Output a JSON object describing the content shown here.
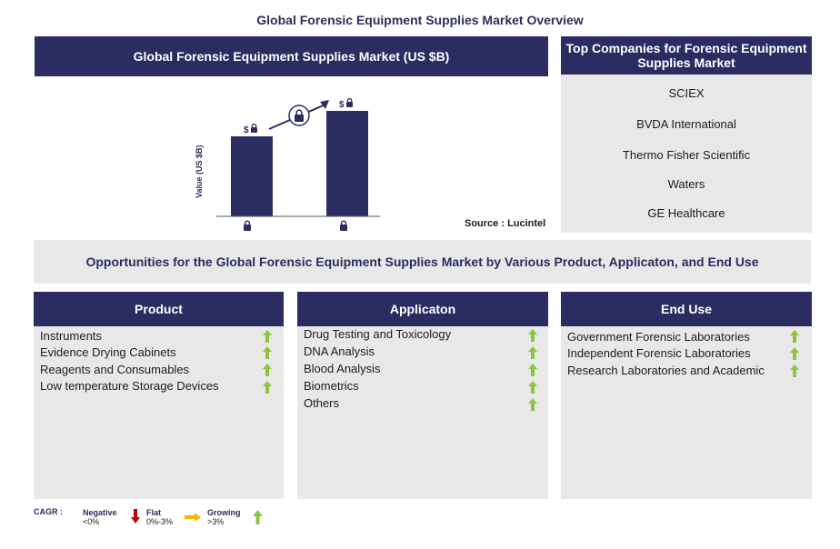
{
  "page_title": "Global Forensic Equipment Supplies Market Overview",
  "chart_panel": {
    "title": "Global Forensic Equipment Supplies Market (US $B)",
    "ylabel": "Value (US $B)",
    "source": "Source : Lucintel",
    "bar_label_symbol": "$"
  },
  "chart_data": {
    "type": "bar",
    "categories": [
      "",
      ""
    ],
    "values": [
      88,
      116
    ],
    "ylabel": "Value (US $B)",
    "note": ""
  },
  "companies": {
    "title": "Top Companies for Forensic Equipment Supplies Market",
    "items": [
      "SCIEX",
      "BVDA International",
      "Thermo Fisher Scientific",
      "Waters",
      "GE Healthcare"
    ]
  },
  "opportunities": {
    "title": "Opportunities for the Global Forensic Equipment Supplies Market by Various Product, Applicaton, and End Use"
  },
  "segments": [
    {
      "title": "Product",
      "items": [
        "Instruments",
        "Evidence Drying Cabinets",
        "Reagents and Consumables",
        "Low temperature Storage Devices"
      ]
    },
    {
      "title": "Applicaton",
      "items": [
        "Drug Testing and Toxicology",
        "DNA Analysis",
        "Blood Analysis",
        "Biometrics",
        "Others"
      ]
    },
    {
      "title": "End Use",
      "items": [
        "Government Forensic Laboratories",
        "Independent Forensic Laboratories",
        "Research Laboratories and Academic"
      ]
    }
  ],
  "legend": {
    "cagr": "CAGR :",
    "negative": "Negative",
    "negative_range": "<0%",
    "flat": "Flat",
    "flat_range": "0%-3%",
    "growing": "Growing",
    "growing_range": ">3%"
  },
  "colors": {
    "navy": "#2b2d62",
    "panel_grey": "#e8e8e8",
    "growth_green": "#8cc63f",
    "negative_red": "#c00000",
    "flat_orange": "#f5b800"
  },
  "icons": [
    "lock-icon",
    "arrow-up-icon",
    "arrow-down-icon",
    "arrow-right-icon"
  ]
}
